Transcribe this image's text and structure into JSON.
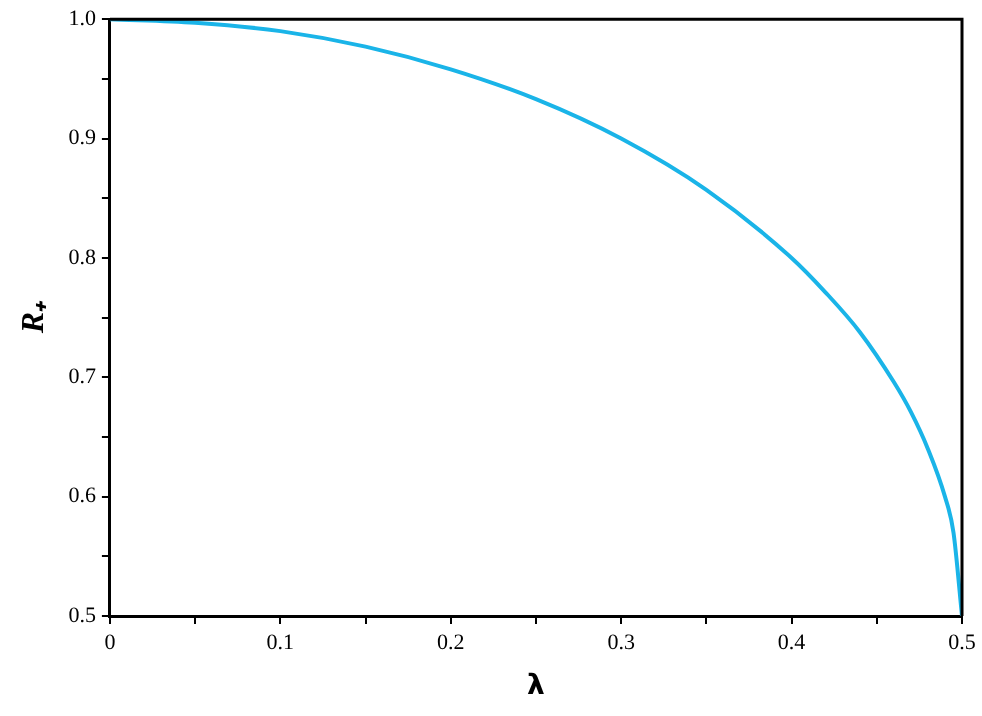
{
  "chart_data": {
    "type": "line",
    "xlabel": "λ",
    "ylabel": "R₊",
    "x": [
      0,
      0.05,
      0.1,
      0.15,
      0.2,
      0.25,
      0.3,
      0.35,
      0.4,
      0.42,
      0.44,
      0.46,
      0.47,
      0.48,
      0.49,
      0.495,
      0.5
    ],
    "series": [
      {
        "color": "#1ab4e8",
        "values": [
          1.0,
          0.997,
          0.99,
          0.977,
          0.958,
          0.933,
          0.9,
          0.857,
          0.8,
          0.771,
          0.738,
          0.696,
          0.671,
          0.64,
          0.6,
          0.57,
          0.5
        ]
      }
    ],
    "xlim": [
      0,
      0.5
    ],
    "ylim": [
      0.5,
      1.0
    ],
    "xticks": [
      0,
      {
        "value": 0.05,
        "label": null
      },
      0.1,
      {
        "value": 0.15,
        "label": null
      },
      0.2,
      {
        "value": 0.25,
        "label": null
      },
      0.3,
      {
        "value": 0.35,
        "label": null
      },
      0.4,
      {
        "value": 0.45,
        "label": null
      },
      0.5
    ],
    "yticks": [
      0.5,
      {
        "value": 0.55,
        "label": null
      },
      0.6,
      {
        "value": 0.65,
        "label": null
      },
      0.7,
      {
        "value": 0.75,
        "label": null
      },
      0.8,
      {
        "value": 0.85,
        "label": null
      },
      0.9,
      {
        "value": 0.95,
        "label": null
      },
      {
        "value": 1.0,
        "label": "1.0"
      }
    ],
    "grid": false,
    "legend": false,
    "marker": "none",
    "line_style": "solid"
  }
}
